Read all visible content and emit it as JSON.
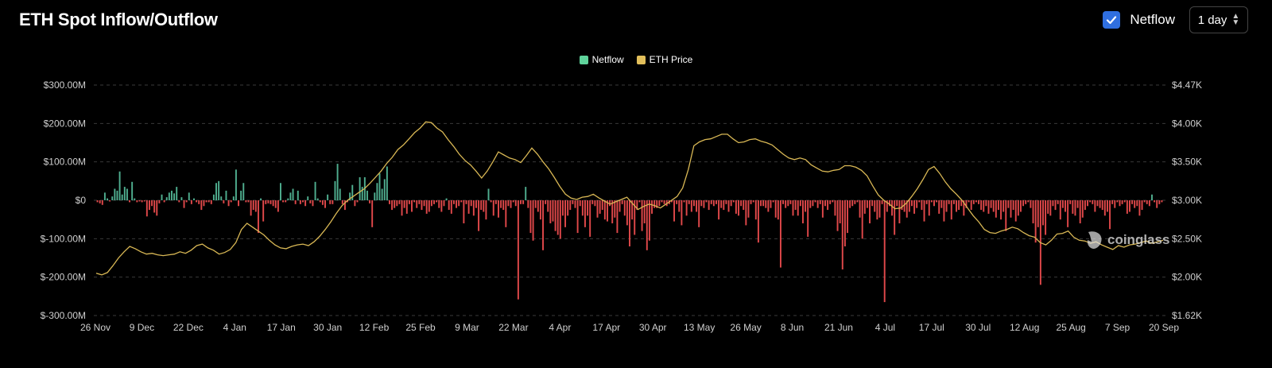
{
  "header": {
    "title": "ETH Spot Inflow/Outflow",
    "netflow_toggle_label": "Netflow",
    "interval_value": "1 day"
  },
  "colors": {
    "positive": "#4fae8f",
    "negative": "#e0484a",
    "price": "#d9b855",
    "grid": "#3a3a3a"
  },
  "watermark": "coinglass",
  "chart_data": {
    "type": "bar",
    "title": "",
    "legend": [
      "Netflow",
      "ETH Price"
    ],
    "legend_position": "top-center",
    "grid": true,
    "left_axis": {
      "ticks": [
        "$300.00M",
        "$200.00M",
        "$100.00M",
        "$0",
        "$-100.00M",
        "$-200.00M",
        "$-300.00M"
      ],
      "ylim": [
        -300,
        300
      ],
      "unit": "millions USD"
    },
    "right_axis": {
      "ticks": [
        "$4.47K",
        "$4.00K",
        "$3.50K",
        "$3.00K",
        "$2.50K",
        "$2.00K",
        "$1.62K"
      ],
      "tick_values": [
        4470,
        4000,
        3500,
        3000,
        2500,
        2000,
        1620
      ],
      "unit": "USD"
    },
    "x_ticks": [
      "26 Nov",
      "9 Dec",
      "22 Dec",
      "4 Jan",
      "17 Jan",
      "30 Jan",
      "12 Feb",
      "25 Feb",
      "9 Mar",
      "22 Mar",
      "4 Apr",
      "17 Apr",
      "30 Apr",
      "13 May",
      "26 May",
      "8 Jun",
      "21 Jun",
      "4 Jul",
      "17 Jul",
      "30 Jul",
      "12 Aug",
      "25 Aug",
      "7 Sep",
      "20 Sep"
    ],
    "series": [
      {
        "name": "Netflow",
        "type": "bar",
        "values": [
          -5,
          -8,
          -12,
          20,
          5,
          -3,
          10,
          30,
          25,
          75,
          15,
          35,
          30,
          -5,
          48,
          5,
          -5,
          -3,
          -5,
          -3,
          -42,
          -25,
          -15,
          -32,
          -40,
          -8,
          15,
          -5,
          8,
          20,
          25,
          18,
          35,
          -5,
          8,
          -20,
          -5,
          20,
          -10,
          5,
          -5,
          -10,
          -25,
          -15,
          -5,
          -5,
          -10,
          15,
          45,
          50,
          10,
          -8,
          25,
          -15,
          -5,
          10,
          80,
          -15,
          25,
          45,
          -5,
          -5,
          -40,
          -25,
          -30,
          -85,
          5,
          -55,
          -10,
          -8,
          -10,
          -15,
          -20,
          -30,
          45,
          -5,
          -5,
          5,
          20,
          30,
          -10,
          25,
          -10,
          -5,
          -15,
          10,
          -8,
          -15,
          48,
          5,
          -5,
          -12,
          -20,
          15,
          -10,
          -10,
          50,
          95,
          30,
          -10,
          -25,
          -5,
          20,
          40,
          -15,
          -5,
          60,
          35,
          60,
          25,
          -8,
          -70,
          20,
          45,
          70,
          30,
          55,
          88,
          -10,
          -25,
          -20,
          -15,
          -10,
          -40,
          -20,
          -35,
          -10,
          -30,
          -5,
          -20,
          -10,
          -25,
          -15,
          -35,
          -30,
          -15,
          -10,
          -5,
          -20,
          -30,
          -15,
          5,
          -25,
          -35,
          -10,
          -20,
          -15,
          -5,
          -60,
          -10,
          -35,
          -15,
          -40,
          -20,
          -80,
          -25,
          -30,
          -50,
          30,
          -5,
          -40,
          -10,
          -45,
          -20,
          -25,
          -70,
          -15,
          -20,
          -5,
          -15,
          -258,
          -10,
          -10,
          35,
          -20,
          -85,
          -105,
          -20,
          -30,
          -50,
          -130,
          -10,
          -30,
          -60,
          -55,
          -80,
          -90,
          -100,
          -40,
          -70,
          -40,
          -25,
          -10,
          -20,
          -85,
          -15,
          -40,
          -70,
          -40,
          -95,
          -10,
          -15,
          -45,
          -35,
          -25,
          -50,
          -55,
          -15,
          -60,
          -45,
          -85,
          -30,
          -10,
          -40,
          -65,
          -120,
          -50,
          -90,
          -25,
          -5,
          -80,
          -60,
          -130,
          -105,
          -35,
          -20,
          -20,
          -15,
          -5,
          -10,
          -15,
          -10,
          -5,
          -55,
          -10,
          -30,
          -65,
          -5,
          -40,
          -10,
          -30,
          -15,
          -30,
          -70,
          -15,
          -20,
          -5,
          -25,
          -10,
          -15,
          -10,
          -50,
          -20,
          -25,
          -10,
          -30,
          -15,
          -5,
          -35,
          -40,
          -15,
          -25,
          -65,
          -45,
          -10,
          -5,
          -50,
          -110,
          -15,
          -15,
          -20,
          -30,
          -20,
          -5,
          -45,
          -50,
          -175,
          -10,
          -20,
          -15,
          -10,
          -40,
          -25,
          -40,
          -15,
          -60,
          -30,
          -95,
          -20,
          -15,
          -5,
          -20,
          -10,
          -45,
          -15,
          -25,
          -10,
          -5,
          -40,
          -80,
          -60,
          -180,
          -120,
          -85,
          -20,
          -15,
          -10,
          -5,
          -45,
          -100,
          -35,
          -20,
          -60,
          -15,
          -30,
          -50,
          -45,
          -10,
          -265,
          -30,
          -15,
          -40,
          -90,
          -15,
          -60,
          -25,
          -30,
          -45,
          -30,
          -15,
          -35,
          -20,
          -5,
          -25,
          -55,
          -10,
          -40,
          -5,
          -15,
          -5,
          -35,
          -20,
          -55,
          -30,
          -10,
          -50,
          -10,
          -30,
          -25,
          -15,
          -40,
          -20,
          -5,
          -25,
          -10,
          -5,
          -10,
          -25,
          -30,
          -15,
          -35,
          -20,
          -30,
          -45,
          -25,
          -50,
          -30,
          -80,
          -20,
          -45,
          -25,
          -55,
          -40,
          -30,
          -15,
          -10,
          -5,
          -20,
          -60,
          -110,
          -70,
          -220,
          -65,
          -90,
          -35,
          -40,
          -15,
          -25,
          -10,
          -50,
          -20,
          -30,
          -70,
          -10,
          -35,
          -40,
          -20,
          -60,
          -45,
          -25,
          -15,
          -5,
          -10,
          -30,
          -15,
          -20,
          -25,
          -40,
          -30,
          -75,
          -10,
          -20,
          -5,
          -15,
          -10,
          -5,
          -35,
          -30,
          -10,
          -20,
          -15,
          -40,
          -25,
          -5,
          -10,
          -15,
          15,
          -5,
          -20,
          -10,
          -5
        ],
        "note": "daily netflow in $M"
      },
      {
        "name": "ETH Price",
        "type": "line",
        "values": [
          2050,
          2030,
          2060,
          2150,
          2250,
          2330,
          2400,
          2370,
          2330,
          2300,
          2310,
          2290,
          2280,
          2290,
          2300,
          2330,
          2310,
          2350,
          2410,
          2430,
          2380,
          2350,
          2300,
          2320,
          2360,
          2450,
          2620,
          2700,
          2650,
          2600,
          2550,
          2480,
          2420,
          2380,
          2370,
          2400,
          2420,
          2430,
          2410,
          2460,
          2530,
          2620,
          2720,
          2830,
          2930,
          3000,
          3050,
          3100,
          3150,
          3220,
          3300,
          3380,
          3480,
          3560,
          3660,
          3720,
          3800,
          3880,
          3940,
          4020,
          4010,
          3940,
          3890,
          3790,
          3700,
          3600,
          3520,
          3460,
          3380,
          3290,
          3380,
          3500,
          3630,
          3590,
          3550,
          3530,
          3490,
          3580,
          3680,
          3600,
          3500,
          3410,
          3300,
          3180,
          3080,
          3030,
          3010,
          3040,
          3050,
          3080,
          3030,
          2990,
          2950,
          2980,
          3010,
          3040,
          2960,
          2880,
          2920,
          2950,
          2930,
          2900,
          2950,
          3000,
          3050,
          3160,
          3400,
          3710,
          3760,
          3790,
          3800,
          3830,
          3860,
          3860,
          3800,
          3750,
          3760,
          3790,
          3800,
          3770,
          3750,
          3720,
          3660,
          3600,
          3550,
          3530,
          3550,
          3530,
          3460,
          3420,
          3380,
          3370,
          3390,
          3400,
          3450,
          3450,
          3430,
          3390,
          3320,
          3190,
          3070,
          3000,
          2950,
          2890,
          2900,
          2960,
          3050,
          3150,
          3270,
          3400,
          3440,
          3350,
          3240,
          3150,
          3080,
          3000,
          2900,
          2800,
          2720,
          2620,
          2580,
          2570,
          2600,
          2620,
          2650,
          2630,
          2580,
          2540,
          2520,
          2450,
          2420,
          2480,
          2560,
          2570,
          2600,
          2520,
          2480,
          2470,
          2440,
          2460,
          2420,
          2390,
          2360,
          2410,
          2390,
          2420,
          2430,
          2450,
          2470,
          2440,
          2460,
          2480
        ],
        "note": "approx daily ETH price in USD"
      }
    ]
  }
}
